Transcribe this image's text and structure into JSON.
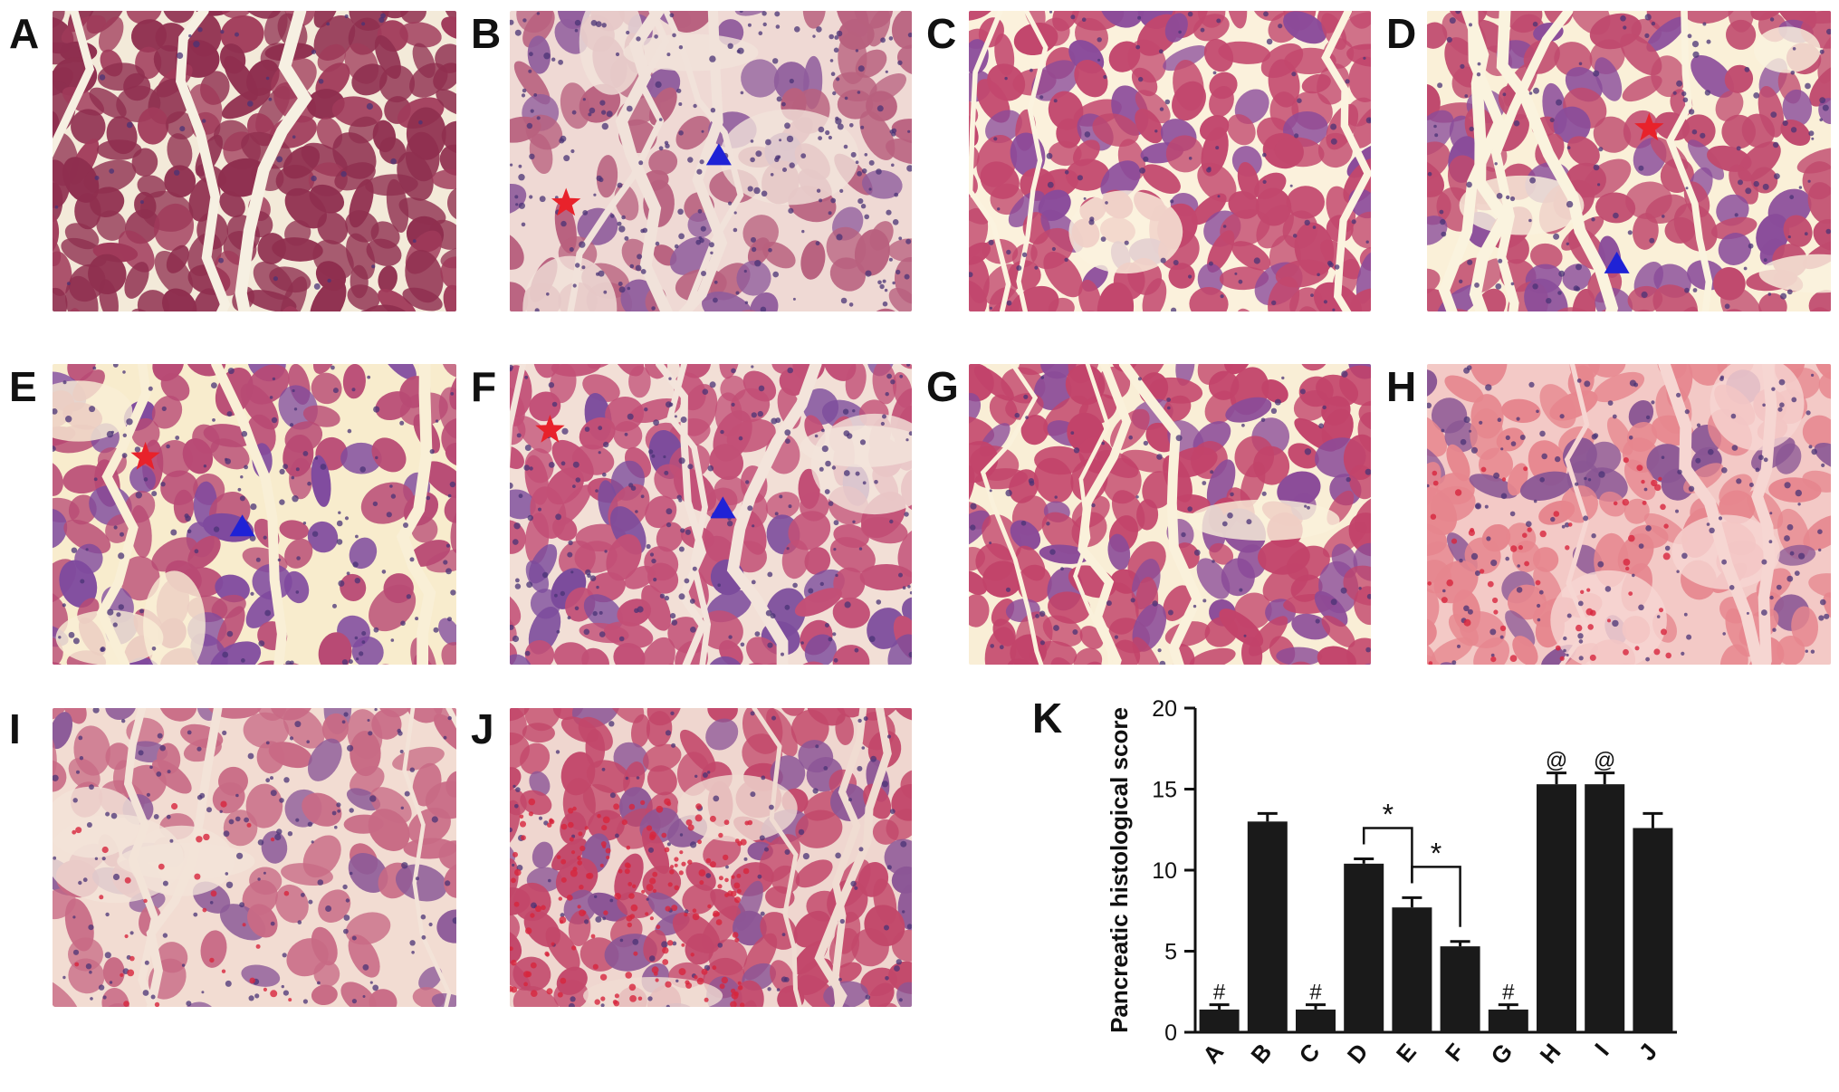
{
  "panels": [
    {
      "label": "A"
    },
    {
      "label": "B"
    },
    {
      "label": "C"
    },
    {
      "label": "D"
    },
    {
      "label": "E"
    },
    {
      "label": "F"
    },
    {
      "label": "G"
    },
    {
      "label": "H"
    },
    {
      "label": "I"
    },
    {
      "label": "J"
    },
    {
      "label": "K"
    }
  ],
  "marker_colors": {
    "star": "#e8222b",
    "triangle": "#1f22d6"
  },
  "chart_data": {
    "type": "bar",
    "categories": [
      "A",
      "B",
      "C",
      "D",
      "E",
      "F",
      "G",
      "H",
      "I",
      "J"
    ],
    "values": [
      1.4,
      13.0,
      1.4,
      10.4,
      7.7,
      5.3,
      1.4,
      15.3,
      15.3,
      12.6
    ],
    "errors": [
      0.3,
      0.5,
      0.3,
      0.3,
      0.6,
      0.3,
      0.3,
      0.7,
      0.7,
      0.9
    ],
    "annotations": [
      "#",
      "",
      "#",
      "",
      "",
      "",
      "#",
      "@",
      "@",
      ""
    ],
    "brackets": [
      {
        "from": "D",
        "to": "E",
        "label": "*"
      },
      {
        "from": "E",
        "to": "F",
        "label": "*"
      }
    ],
    "ylabel": "Pancreatic histological score",
    "xlabel": "",
    "ylim": [
      0,
      20
    ],
    "yticks": [
      0,
      5,
      10,
      15,
      20
    ],
    "bar_color": "#1a1a1a"
  }
}
